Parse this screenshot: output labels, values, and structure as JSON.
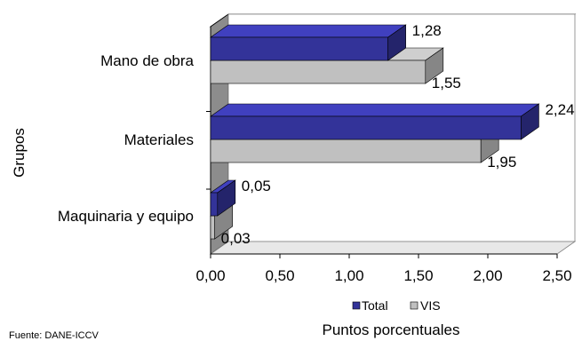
{
  "chart_data": {
    "type": "bar",
    "orientation": "horizontal",
    "three_d": true,
    "categories": [
      "Mano de obra",
      "Materiales",
      "Maquinaria y equipo"
    ],
    "series": [
      {
        "name": "Total",
        "values": [
          1.28,
          2.24,
          0.05
        ],
        "labels": [
          "1,28",
          "2,24",
          "0,05"
        ],
        "color": "#333399"
      },
      {
        "name": "VIS",
        "values": [
          1.55,
          1.95,
          0.03
        ],
        "labels": [
          "1,55",
          "1,95",
          "0,03"
        ],
        "color": "#c0c0c0"
      }
    ],
    "xlim": [
      0,
      2.5
    ],
    "xticks": [
      "0,00",
      "0,50",
      "1,00",
      "1,50",
      "2,00",
      "2,50"
    ],
    "xlabel": "Puntos porcentuales",
    "ylabel": "Grupos",
    "legend_position": "bottom",
    "grid": false
  },
  "source_note": "Fuente: DANE-ICCV"
}
